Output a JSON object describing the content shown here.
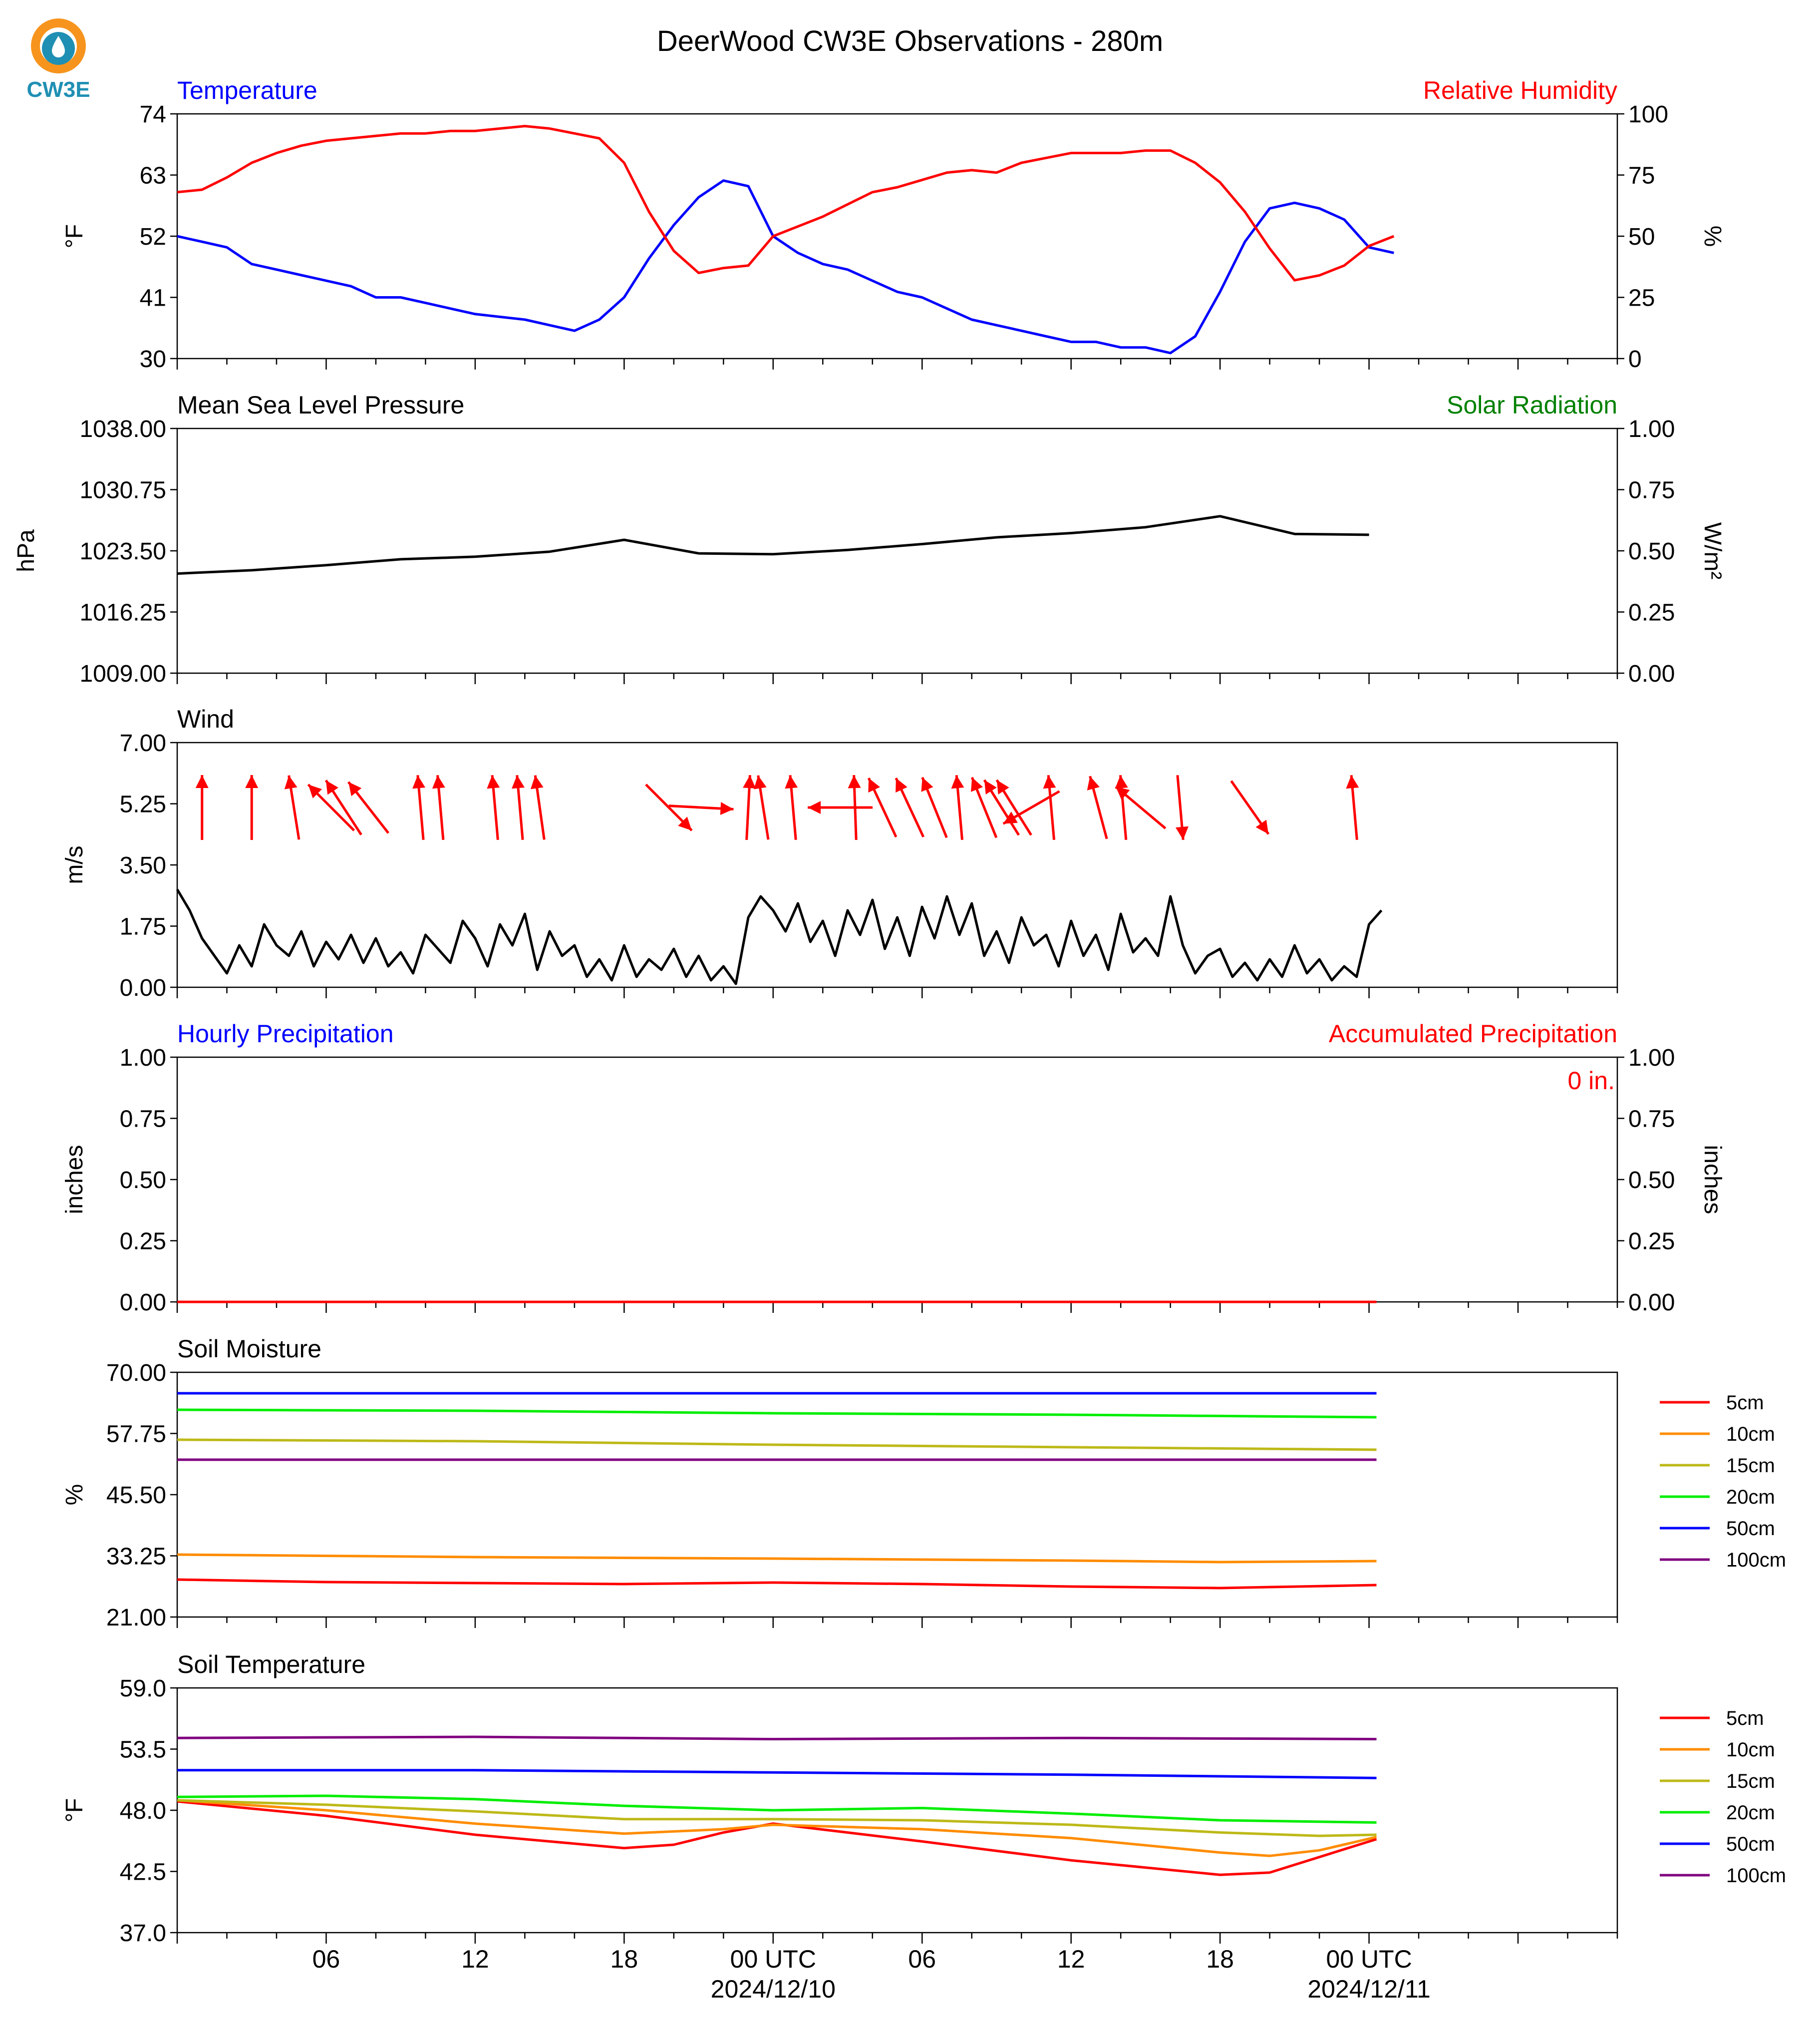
{
  "header": {
    "title": "DeerWood CW3E Observations - 280m",
    "logo_text": "CW3E"
  },
  "colors": {
    "blue": "#0000ff",
    "red": "#ff0000",
    "green": "#008000",
    "black": "#000000",
    "soil": {
      "5cm": "#ff0000",
      "10cm": "#ff8c00",
      "15cm": "#bdb918",
      "20cm": "#00ee00",
      "50cm": "#0000ff",
      "100cm": "#800080"
    },
    "logo": {
      "orange": "#f7941d",
      "teal": "#1f8fb3",
      "navy": "#15506d"
    }
  },
  "x_axis": {
    "hours_shown": 58,
    "tick_labels": [
      {
        "h": 6,
        "label": "06",
        "date": ""
      },
      {
        "h": 12,
        "label": "12",
        "date": ""
      },
      {
        "h": 18,
        "label": "18",
        "date": ""
      },
      {
        "h": 24,
        "label": "00 UTC",
        "date": "2024/12/10"
      },
      {
        "h": 30,
        "label": "06",
        "date": ""
      },
      {
        "h": 36,
        "label": "12",
        "date": ""
      },
      {
        "h": 42,
        "label": "18",
        "date": ""
      },
      {
        "h": 48,
        "label": "00 UTC",
        "date": "2024/12/11"
      }
    ]
  },
  "chart_data": [
    {
      "id": "temp_rh",
      "type": "line",
      "left_title": "Temperature",
      "right_title": "Relative Humidity",
      "ylabel": "°F",
      "ylabel_right": "%",
      "ylim": [
        30,
        74
      ],
      "ylim_right": [
        0,
        100
      ],
      "yticks": [
        "74",
        "63",
        "52",
        "41",
        "30"
      ],
      "yticks_right": [
        "100",
        "75",
        "50",
        "25",
        "0"
      ],
      "series": [
        {
          "axis": "left",
          "color": "#0000ff",
          "x": [
            0,
            1,
            2,
            3,
            4,
            5,
            6,
            7,
            8,
            9,
            10,
            11,
            12,
            13,
            14,
            15,
            16,
            17,
            18,
            19,
            20,
            21,
            22,
            23,
            24,
            25,
            26,
            27,
            28,
            29,
            30,
            31,
            32,
            33,
            34,
            35,
            36,
            37,
            38,
            39,
            40,
            41,
            42,
            43,
            44,
            45,
            46,
            47,
            48,
            49
          ],
          "y": [
            52,
            51,
            50,
            47,
            46,
            45,
            44,
            43,
            41,
            41,
            40,
            39,
            38,
            37.5,
            37,
            36,
            35,
            37,
            41,
            48,
            54,
            59,
            62,
            61,
            52,
            49,
            47,
            46,
            44,
            42,
            41,
            39,
            37,
            36,
            35,
            34,
            33,
            33,
            32,
            32,
            31,
            34,
            42,
            51,
            57,
            58,
            57,
            55,
            50,
            49
          ]
        },
        {
          "axis": "right",
          "color": "#ff0000",
          "x": [
            0,
            1,
            2,
            3,
            4,
            5,
            6,
            7,
            8,
            9,
            10,
            11,
            12,
            13,
            14,
            15,
            16,
            17,
            18,
            19,
            20,
            21,
            22,
            23,
            24,
            25,
            26,
            27,
            28,
            29,
            30,
            31,
            32,
            33,
            34,
            35,
            36,
            37,
            38,
            39,
            40,
            41,
            42,
            43,
            44,
            45,
            46,
            47,
            48,
            49
          ],
          "y": [
            68,
            69,
            74,
            80,
            84,
            87,
            89,
            90,
            91,
            92,
            92,
            93,
            93,
            94,
            95,
            94,
            92,
            90,
            80,
            60,
            44,
            35,
            37,
            38,
            50,
            54,
            58,
            63,
            68,
            70,
            73,
            76,
            77,
            76,
            80,
            82,
            84,
            84,
            84,
            85,
            85,
            80,
            72,
            60,
            45,
            32,
            34,
            38,
            46,
            50
          ]
        }
      ]
    },
    {
      "id": "pressure",
      "type": "line",
      "left_title": "Mean Sea Level Pressure",
      "right_title": "Solar Radiation",
      "ylabel": "hPa",
      "ylabel_right": "W/m²",
      "ylim": [
        1009,
        1038
      ],
      "ylim_right": [
        0,
        1
      ],
      "yticks": [
        "1038.00",
        "1030.75",
        "1023.50",
        "1016.25",
        "1009.00"
      ],
      "yticks_right": [
        "1.00",
        "0.75",
        "0.50",
        "0.25",
        "0.00"
      ],
      "series": [
        {
          "axis": "left",
          "color": "#000000",
          "x": [
            0,
            3,
            6,
            9,
            12,
            15,
            18,
            21,
            24,
            27,
            30,
            33,
            36,
            39,
            42,
            45,
            48
          ],
          "y": [
            1020.8,
            1021.2,
            1021.8,
            1022.5,
            1022.8,
            1023.4,
            1024.8,
            1023.2,
            1023.1,
            1023.6,
            1024.3,
            1025.1,
            1025.6,
            1026.3,
            1027.6,
            1025.5,
            1025.4
          ]
        }
      ]
    },
    {
      "id": "wind",
      "type": "line",
      "left_title": "Wind",
      "ylabel": "m/s",
      "ylim": [
        0,
        7
      ],
      "yticks": [
        "7.00",
        "5.25",
        "3.50",
        "1.75",
        "0.00"
      ],
      "series": [
        {
          "axis": "left",
          "color": "#000000",
          "x": [
            0,
            0.5,
            1,
            1.5,
            2,
            2.5,
            3,
            3.5,
            4,
            4.5,
            5,
            5.5,
            6,
            6.5,
            7,
            7.5,
            8,
            8.5,
            9,
            9.5,
            10,
            10.5,
            11,
            11.5,
            12,
            12.5,
            13,
            13.5,
            14,
            14.5,
            15,
            15.5,
            16,
            16.5,
            17,
            17.5,
            18,
            18.5,
            19,
            19.5,
            20,
            20.5,
            21,
            21.5,
            22,
            22.5,
            23,
            23.5,
            24,
            24.5,
            25,
            25.5,
            26,
            26.5,
            27,
            27.5,
            28,
            28.5,
            29,
            29.5,
            30,
            30.5,
            31,
            31.5,
            32,
            32.5,
            33,
            33.5,
            34,
            34.5,
            35,
            35.5,
            36,
            36.5,
            37,
            37.5,
            38,
            38.5,
            39,
            39.5,
            40,
            40.5,
            41,
            41.5,
            42,
            42.5,
            43,
            43.5,
            44,
            44.5,
            45,
            45.5,
            46,
            46.5,
            47,
            47.5,
            48,
            48.5
          ],
          "y": [
            2.8,
            2.2,
            1.4,
            0.9,
            0.4,
            1.2,
            0.6,
            1.8,
            1.2,
            0.9,
            1.6,
            0.6,
            1.3,
            0.8,
            1.5,
            0.7,
            1.4,
            0.6,
            1.0,
            0.4,
            1.5,
            1.1,
            0.7,
            1.9,
            1.4,
            0.6,
            1.8,
            1.2,
            2.1,
            0.5,
            1.6,
            0.9,
            1.2,
            0.3,
            0.8,
            0.2,
            1.2,
            0.3,
            0.8,
            0.5,
            1.1,
            0.3,
            0.9,
            0.2,
            0.6,
            0.1,
            2.0,
            2.6,
            2.2,
            1.6,
            2.4,
            1.3,
            1.9,
            0.9,
            2.2,
            1.5,
            2.5,
            1.1,
            2.0,
            0.9,
            2.3,
            1.4,
            2.6,
            1.5,
            2.4,
            0.9,
            1.6,
            0.7,
            2.0,
            1.2,
            1.5,
            0.6,
            1.9,
            0.9,
            1.5,
            0.5,
            2.1,
            1.0,
            1.4,
            0.9,
            2.6,
            1.2,
            0.4,
            0.9,
            1.1,
            0.3,
            0.7,
            0.2,
            0.8,
            0.3,
            1.2,
            0.4,
            0.8,
            0.2,
            0.6,
            0.3,
            1.8,
            2.2
          ]
        }
      ],
      "arrows": [
        {
          "h": 1.0,
          "dir": 0
        },
        {
          "h": 3.0,
          "dir": 0
        },
        {
          "h": 4.7,
          "dir": -9
        },
        {
          "h": 6.2,
          "dir": -45
        },
        {
          "h": 6.7,
          "dir": -33
        },
        {
          "h": 7.7,
          "dir": -38
        },
        {
          "h": 9.8,
          "dir": -5
        },
        {
          "h": 10.6,
          "dir": -5
        },
        {
          "h": 12.8,
          "dir": -5
        },
        {
          "h": 13.8,
          "dir": -5
        },
        {
          "h": 14.6,
          "dir": -8
        },
        {
          "h": 19.8,
          "dir": 135
        },
        {
          "h": 21.1,
          "dir": 93
        },
        {
          "h": 23.0,
          "dir": 3
        },
        {
          "h": 23.6,
          "dir": -9
        },
        {
          "h": 24.8,
          "dir": -5
        },
        {
          "h": 26.7,
          "dir": -90
        },
        {
          "h": 27.3,
          "dir": -2
        },
        {
          "h": 28.4,
          "dir": -25
        },
        {
          "h": 29.5,
          "dir": -25
        },
        {
          "h": 30.5,
          "dir": -22
        },
        {
          "h": 31.5,
          "dir": -5
        },
        {
          "h": 32.5,
          "dir": -22
        },
        {
          "h": 33.2,
          "dir": -32
        },
        {
          "h": 33.7,
          "dir": -32
        },
        {
          "h": 34.4,
          "dir": -120
        },
        {
          "h": 35.2,
          "dir": -5
        },
        {
          "h": 37.1,
          "dir": -15
        },
        {
          "h": 38.1,
          "dir": -5
        },
        {
          "h": 38.8,
          "dir": -50
        },
        {
          "h": 40.4,
          "dir": 175
        },
        {
          "h": 43.2,
          "dir": 145
        },
        {
          "h": 47.4,
          "dir": -5
        }
      ]
    },
    {
      "id": "precip",
      "type": "line",
      "left_title": "Hourly Precipitation",
      "right_title": "Accumulated Precipitation",
      "annotation": "0 in.",
      "ylabel": "inches",
      "ylabel_right": "inches",
      "ylim": [
        0,
        1
      ],
      "ylim_right": [
        0,
        1
      ],
      "yticks": [
        "1.00",
        "0.75",
        "0.50",
        "0.25",
        "0.00"
      ],
      "yticks_right": [
        "1.00",
        "0.75",
        "0.50",
        "0.25",
        "0.00"
      ],
      "series": [
        {
          "axis": "right",
          "color": "#ff0000",
          "x": [
            0,
            48.3
          ],
          "y": [
            0,
            0
          ]
        }
      ]
    },
    {
      "id": "soil_moisture",
      "type": "line",
      "left_title": "Soil Moisture",
      "ylabel": "%",
      "ylim": [
        21,
        70
      ],
      "yticks": [
        "70.00",
        "57.75",
        "45.50",
        "33.25",
        "21.00"
      ],
      "legend": [
        "5cm",
        "10cm",
        "15cm",
        "20cm",
        "50cm",
        "100cm"
      ],
      "series": [
        {
          "name": "5cm",
          "color": "#ff0000",
          "x": [
            0,
            6,
            12,
            18,
            24,
            30,
            36,
            42,
            48.3
          ],
          "y": [
            28.5,
            28.0,
            27.8,
            27.6,
            27.9,
            27.6,
            27.1,
            26.8,
            27.4
          ]
        },
        {
          "name": "10cm",
          "color": "#ff8c00",
          "x": [
            0,
            12,
            24,
            36,
            42,
            48.3
          ],
          "y": [
            33.5,
            33.0,
            32.7,
            32.3,
            32.0,
            32.2
          ]
        },
        {
          "name": "15cm",
          "color": "#bdb918",
          "x": [
            0,
            12,
            24,
            36,
            48.3
          ],
          "y": [
            56.5,
            56.2,
            55.5,
            55.0,
            54.5
          ]
        },
        {
          "name": "20cm",
          "color": "#00ee00",
          "x": [
            0,
            12,
            24,
            36,
            48.3
          ],
          "y": [
            62.5,
            62.3,
            61.8,
            61.5,
            61.0
          ]
        },
        {
          "name": "50cm",
          "color": "#0000ff",
          "x": [
            0,
            48.3
          ],
          "y": [
            65.8,
            65.8
          ]
        },
        {
          "name": "100cm",
          "color": "#800080",
          "x": [
            0,
            48.3
          ],
          "y": [
            52.5,
            52.5
          ]
        }
      ]
    },
    {
      "id": "soil_temperature",
      "type": "line",
      "left_title": "Soil Temperature",
      "ylabel": "°F",
      "ylim": [
        37,
        59
      ],
      "yticks": [
        "59.0",
        "53.5",
        "48.0",
        "42.5",
        "37.0"
      ],
      "legend": [
        "5cm",
        "10cm",
        "15cm",
        "20cm",
        "50cm",
        "100cm"
      ],
      "series": [
        {
          "name": "5cm",
          "color": "#ff0000",
          "x": [
            0,
            6,
            12,
            18,
            20,
            22,
            24,
            30,
            36,
            42,
            44,
            48.3
          ],
          "y": [
            48.8,
            47.5,
            45.8,
            44.6,
            44.9,
            46.0,
            46.8,
            45.2,
            43.5,
            42.2,
            42.4,
            45.4
          ]
        },
        {
          "name": "10cm",
          "color": "#ff8c00",
          "x": [
            0,
            6,
            12,
            18,
            22,
            24,
            30,
            36,
            42,
            44,
            46,
            48.3
          ],
          "y": [
            48.9,
            48.0,
            46.8,
            45.9,
            46.3,
            46.7,
            46.3,
            45.5,
            44.2,
            43.9,
            44.4,
            45.6
          ]
        },
        {
          "name": "15cm",
          "color": "#bdb918",
          "x": [
            0,
            6,
            12,
            18,
            24,
            30,
            36,
            42,
            46,
            48.3
          ],
          "y": [
            48.9,
            48.5,
            47.9,
            47.2,
            47.2,
            47.1,
            46.7,
            46.0,
            45.7,
            45.8
          ]
        },
        {
          "name": "20cm",
          "color": "#00ee00",
          "x": [
            0,
            6,
            12,
            18,
            24,
            30,
            36,
            42,
            48.3
          ],
          "y": [
            49.2,
            49.3,
            49.0,
            48.4,
            48.0,
            48.2,
            47.7,
            47.1,
            46.9
          ]
        },
        {
          "name": "50cm",
          "color": "#0000ff",
          "x": [
            0,
            12,
            24,
            36,
            48.3
          ],
          "y": [
            51.6,
            51.6,
            51.4,
            51.2,
            50.9
          ]
        },
        {
          "name": "100cm",
          "color": "#800080",
          "x": [
            0,
            12,
            24,
            36,
            48.3
          ],
          "y": [
            54.5,
            54.6,
            54.4,
            54.5,
            54.4
          ]
        }
      ]
    }
  ]
}
